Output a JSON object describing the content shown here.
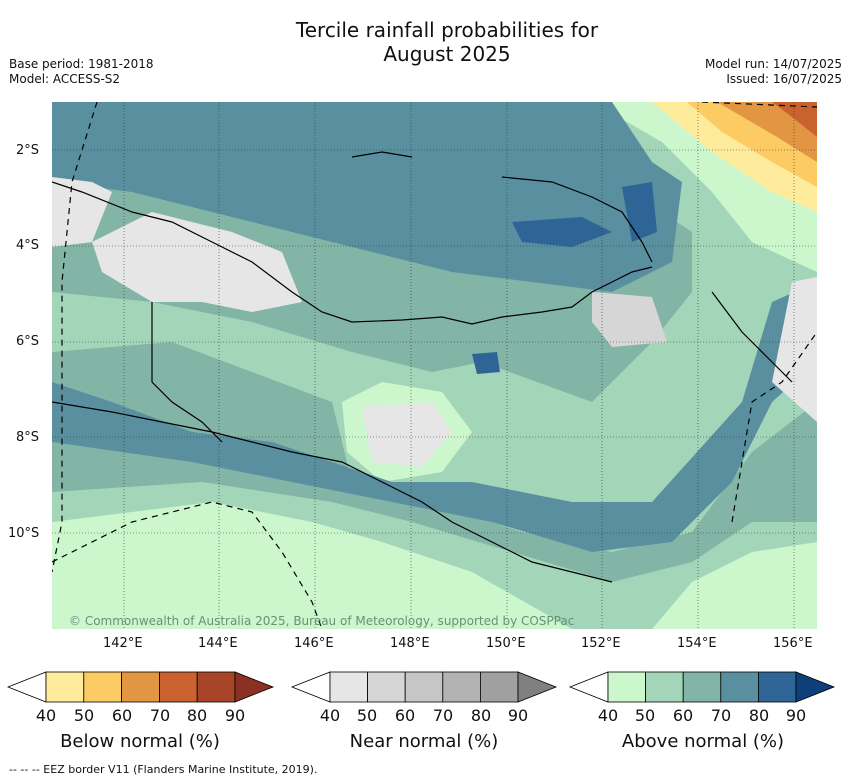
{
  "title_line1": "Tercile rainfall probabilities for",
  "title_line2": "August 2025",
  "base_period": "Base period: 1981-2018",
  "model": "Model: ACCESS-S2",
  "model_run": "Model run: 14/07/2025",
  "issued": "Issued: 16/07/2025",
  "lat_labels": [
    "2°S",
    "4°S",
    "6°S",
    "8°S",
    "10°S"
  ],
  "lon_labels": [
    "142°E",
    "144°E",
    "146°E",
    "148°E",
    "150°E",
    "152°E",
    "154°E",
    "156°E"
  ],
  "copyright": "© Commonwealth of Australia 2025, Bureau of Meteorology, supported by COSPPac",
  "colorbars": [
    {
      "label": "Below normal (%)",
      "ticks": [
        "40",
        "50",
        "60",
        "70",
        "80",
        "90"
      ],
      "colors": [
        "#ffffff",
        "#ffeb9c",
        "#fdcb63",
        "#e29644",
        "#c9622f",
        "#a84528",
        "#8b3022"
      ]
    },
    {
      "label": "Near normal (%)",
      "ticks": [
        "40",
        "50",
        "60",
        "70",
        "80",
        "90"
      ],
      "colors": [
        "#ffffff",
        "#e6e6e6",
        "#d6d6d6",
        "#c6c6c6",
        "#b3b3b3",
        "#a0a0a0",
        "#808080"
      ]
    },
    {
      "label": "Above normal (%)",
      "ticks": [
        "40",
        "50",
        "60",
        "70",
        "80",
        "90"
      ],
      "colors": [
        "#ffffff",
        "#ccf7cd",
        "#a3d6b8",
        "#82b5a6",
        "#5a8fa0",
        "#2f6496",
        "#0e3f78"
      ]
    }
  ],
  "footer": "--  --  -- EEZ border V11 (Flanders Marine Institute, 2019)."
}
